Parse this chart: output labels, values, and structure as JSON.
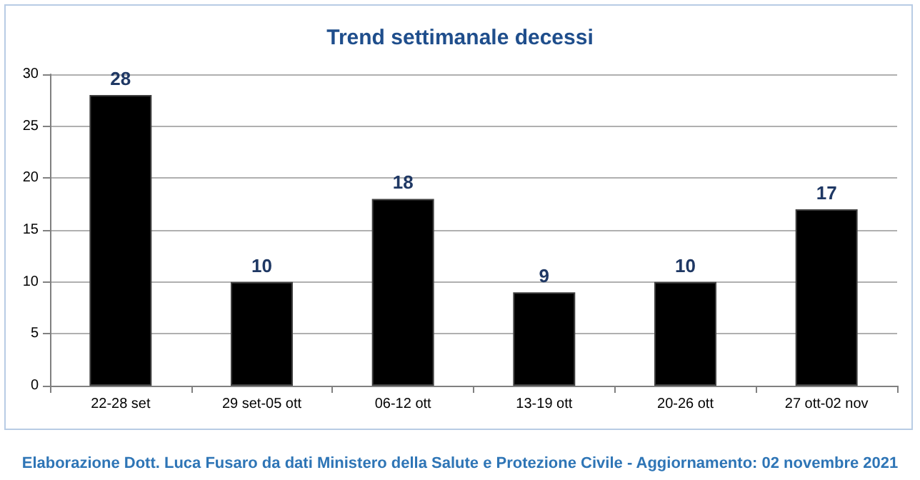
{
  "chart_data": {
    "type": "bar",
    "title": "Trend settimanale decessi",
    "categories": [
      "22-28 set",
      "29 set-05 ott",
      "06-12 ott",
      "13-19 ott",
      "20-26 ott",
      "27 ott-02 nov"
    ],
    "values": [
      28,
      10,
      18,
      9,
      10,
      17
    ],
    "color": "#000000",
    "ylim": [
      0,
      30
    ],
    "yticks": [
      0,
      5,
      10,
      15,
      20,
      25,
      30
    ],
    "grid": "y",
    "data_labels": true,
    "annotations": [
      "Elaborazione Dott. Luca Fusaro da dati Ministero della Salute e Protezione Civile - Aggiornamento: 02 novembre 2021"
    ]
  }
}
